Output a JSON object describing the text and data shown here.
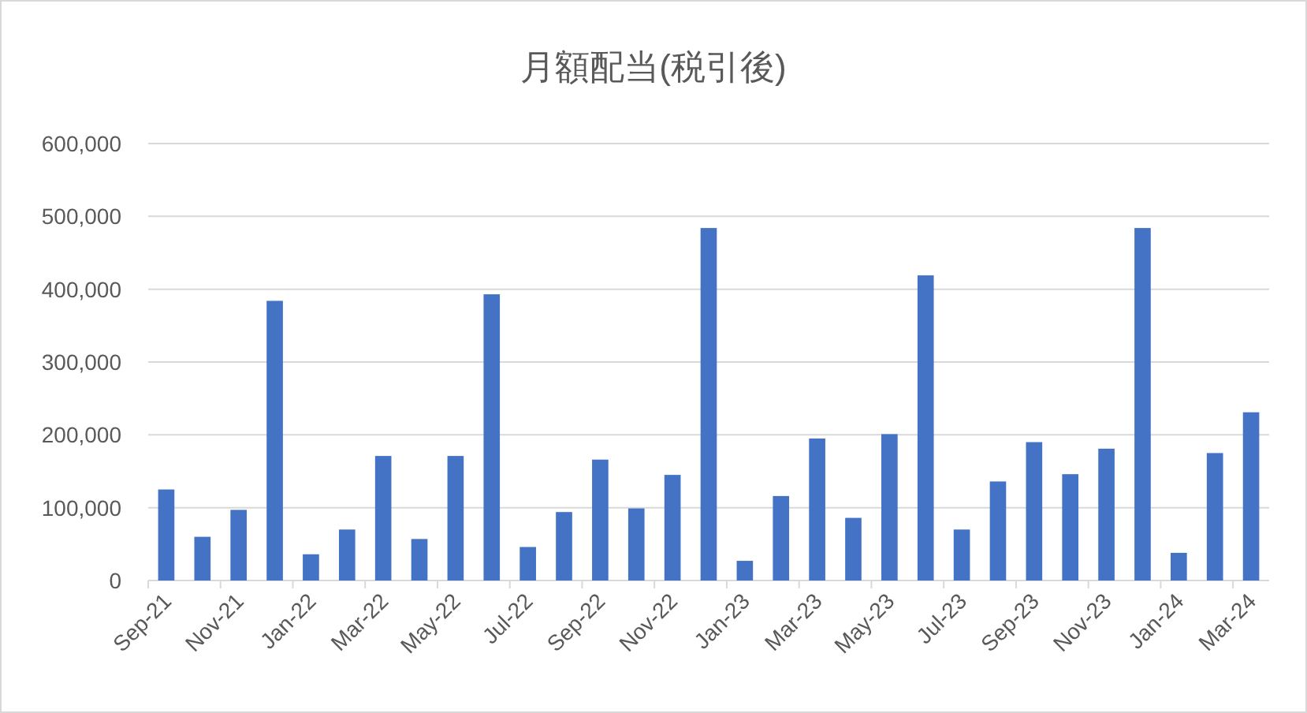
{
  "chart_data": {
    "type": "bar",
    "title": "月額配当(税引後)",
    "categories": [
      "Sep-21",
      null,
      "Nov-21",
      null,
      "Jan-22",
      null,
      "Mar-22",
      null,
      "May-22",
      null,
      "Jul-22",
      null,
      "Sep-22",
      null,
      "Nov-22",
      null,
      "Jan-23",
      null,
      "Mar-23",
      null,
      "May-23",
      null,
      "Jul-23",
      null,
      "Sep-23",
      null,
      "Nov-23",
      null,
      "Jan-24",
      null,
      "Mar-24"
    ],
    "values": [
      125000,
      60000,
      97000,
      384000,
      36000,
      70000,
      171000,
      57000,
      171000,
      393000,
      46000,
      94000,
      166000,
      99000,
      145000,
      484000,
      27000,
      116000,
      195000,
      86000,
      201000,
      419000,
      70000,
      136000,
      190000,
      146000,
      181000,
      484000,
      38000,
      175000,
      231000
    ],
    "color": "#4472c4",
    "ylim": [
      0,
      600000
    ],
    "yticks": [
      {
        "value": 0,
        "label": "0"
      },
      {
        "value": 100000,
        "label": "100,000"
      },
      {
        "value": 200000,
        "label": "200,000"
      },
      {
        "value": 300000,
        "label": "300,000"
      },
      {
        "value": 400000,
        "label": "400,000"
      },
      {
        "value": 500000,
        "label": "500,000"
      },
      {
        "value": 600000,
        "label": "600,000"
      }
    ],
    "grid": "y"
  }
}
